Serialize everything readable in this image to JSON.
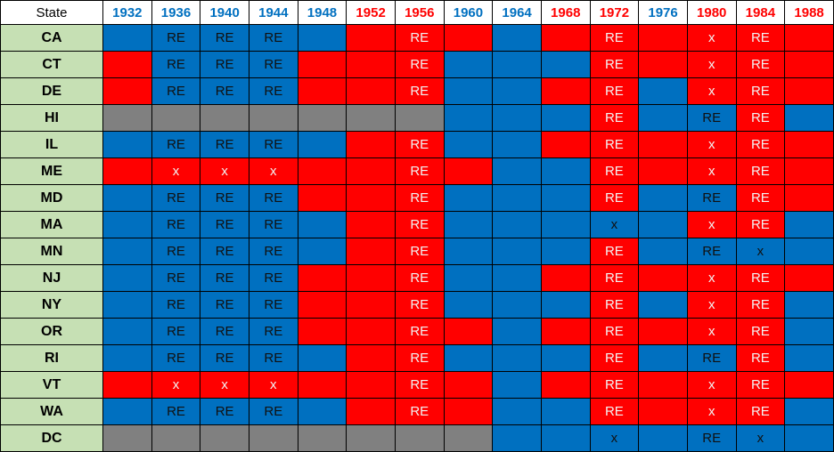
{
  "table": {
    "header": {
      "state_label": "State",
      "years": [
        {
          "label": "1932",
          "color": "#0070c0"
        },
        {
          "label": "1936",
          "color": "#0070c0"
        },
        {
          "label": "1940",
          "color": "#0070c0"
        },
        {
          "label": "1944",
          "color": "#0070c0"
        },
        {
          "label": "1948",
          "color": "#0070c0"
        },
        {
          "label": "1952",
          "color": "#ff0000"
        },
        {
          "label": "1956",
          "color": "#ff0000"
        },
        {
          "label": "1960",
          "color": "#0070c0"
        },
        {
          "label": "1964",
          "color": "#0070c0"
        },
        {
          "label": "1968",
          "color": "#ff0000"
        },
        {
          "label": "1972",
          "color": "#ff0000"
        },
        {
          "label": "1976",
          "color": "#0070c0"
        },
        {
          "label": "1980",
          "color": "#ff0000"
        },
        {
          "label": "1984",
          "color": "#ff0000"
        },
        {
          "label": "1988",
          "color": "#ff0000"
        }
      ]
    },
    "rows": [
      {
        "state": "CA",
        "cells": [
          {
            "fill": "#0070c0"
          },
          {
            "fill": "#0070c0",
            "text": "RE"
          },
          {
            "fill": "#0070c0",
            "text": "RE"
          },
          {
            "fill": "#0070c0",
            "text": "RE"
          },
          {
            "fill": "#0070c0"
          },
          {
            "fill": "#ff0000"
          },
          {
            "fill": "#ff0000",
            "text": "RE"
          },
          {
            "fill": "#ff0000"
          },
          {
            "fill": "#0070c0"
          },
          {
            "fill": "#ff0000"
          },
          {
            "fill": "#ff0000",
            "text": "RE"
          },
          {
            "fill": "#ff0000"
          },
          {
            "fill": "#ff0000",
            "text": "x"
          },
          {
            "fill": "#ff0000",
            "text": "RE"
          },
          {
            "fill": "#ff0000"
          }
        ]
      },
      {
        "state": "CT",
        "cells": [
          {
            "fill": "#ff0000"
          },
          {
            "fill": "#0070c0",
            "text": "RE"
          },
          {
            "fill": "#0070c0",
            "text": "RE"
          },
          {
            "fill": "#0070c0",
            "text": "RE"
          },
          {
            "fill": "#ff0000"
          },
          {
            "fill": "#ff0000"
          },
          {
            "fill": "#ff0000",
            "text": "RE"
          },
          {
            "fill": "#0070c0"
          },
          {
            "fill": "#0070c0"
          },
          {
            "fill": "#0070c0"
          },
          {
            "fill": "#ff0000",
            "text": "RE"
          },
          {
            "fill": "#ff0000"
          },
          {
            "fill": "#ff0000",
            "text": "x"
          },
          {
            "fill": "#ff0000",
            "text": "RE"
          },
          {
            "fill": "#ff0000"
          }
        ]
      },
      {
        "state": "DE",
        "cells": [
          {
            "fill": "#ff0000"
          },
          {
            "fill": "#0070c0",
            "text": "RE"
          },
          {
            "fill": "#0070c0",
            "text": "RE"
          },
          {
            "fill": "#0070c0",
            "text": "RE"
          },
          {
            "fill": "#ff0000"
          },
          {
            "fill": "#ff0000"
          },
          {
            "fill": "#ff0000",
            "text": "RE"
          },
          {
            "fill": "#0070c0"
          },
          {
            "fill": "#0070c0"
          },
          {
            "fill": "#ff0000"
          },
          {
            "fill": "#ff0000",
            "text": "RE"
          },
          {
            "fill": "#0070c0"
          },
          {
            "fill": "#ff0000",
            "text": "x"
          },
          {
            "fill": "#ff0000",
            "text": "RE"
          },
          {
            "fill": "#ff0000"
          }
        ]
      },
      {
        "state": "HI",
        "cells": [
          {
            "fill": "#808080"
          },
          {
            "fill": "#808080"
          },
          {
            "fill": "#808080"
          },
          {
            "fill": "#808080"
          },
          {
            "fill": "#808080"
          },
          {
            "fill": "#808080"
          },
          {
            "fill": "#808080"
          },
          {
            "fill": "#0070c0"
          },
          {
            "fill": "#0070c0"
          },
          {
            "fill": "#0070c0"
          },
          {
            "fill": "#ff0000",
            "text": "RE"
          },
          {
            "fill": "#0070c0"
          },
          {
            "fill": "#0070c0",
            "text": "RE"
          },
          {
            "fill": "#ff0000",
            "text": "RE"
          },
          {
            "fill": "#0070c0"
          }
        ]
      },
      {
        "state": "IL",
        "cells": [
          {
            "fill": "#0070c0"
          },
          {
            "fill": "#0070c0",
            "text": "RE"
          },
          {
            "fill": "#0070c0",
            "text": "RE"
          },
          {
            "fill": "#0070c0",
            "text": "RE"
          },
          {
            "fill": "#0070c0"
          },
          {
            "fill": "#ff0000"
          },
          {
            "fill": "#ff0000",
            "text": "RE"
          },
          {
            "fill": "#0070c0"
          },
          {
            "fill": "#0070c0"
          },
          {
            "fill": "#ff0000"
          },
          {
            "fill": "#ff0000",
            "text": "RE"
          },
          {
            "fill": "#ff0000"
          },
          {
            "fill": "#ff0000",
            "text": "x"
          },
          {
            "fill": "#ff0000",
            "text": "RE"
          },
          {
            "fill": "#ff0000"
          }
        ]
      },
      {
        "state": "ME",
        "cells": [
          {
            "fill": "#ff0000"
          },
          {
            "fill": "#ff0000",
            "text": "x"
          },
          {
            "fill": "#ff0000",
            "text": "x"
          },
          {
            "fill": "#ff0000",
            "text": "x"
          },
          {
            "fill": "#ff0000"
          },
          {
            "fill": "#ff0000"
          },
          {
            "fill": "#ff0000",
            "text": "RE"
          },
          {
            "fill": "#ff0000"
          },
          {
            "fill": "#0070c0"
          },
          {
            "fill": "#0070c0"
          },
          {
            "fill": "#ff0000",
            "text": "RE"
          },
          {
            "fill": "#ff0000"
          },
          {
            "fill": "#ff0000",
            "text": "x"
          },
          {
            "fill": "#ff0000",
            "text": "RE"
          },
          {
            "fill": "#ff0000"
          }
        ]
      },
      {
        "state": "MD",
        "cells": [
          {
            "fill": "#0070c0"
          },
          {
            "fill": "#0070c0",
            "text": "RE"
          },
          {
            "fill": "#0070c0",
            "text": "RE"
          },
          {
            "fill": "#0070c0",
            "text": "RE"
          },
          {
            "fill": "#ff0000"
          },
          {
            "fill": "#ff0000"
          },
          {
            "fill": "#ff0000",
            "text": "RE"
          },
          {
            "fill": "#0070c0"
          },
          {
            "fill": "#0070c0"
          },
          {
            "fill": "#0070c0"
          },
          {
            "fill": "#ff0000",
            "text": "RE"
          },
          {
            "fill": "#0070c0"
          },
          {
            "fill": "#0070c0",
            "text": "RE"
          },
          {
            "fill": "#ff0000",
            "text": "RE"
          },
          {
            "fill": "#ff0000"
          }
        ]
      },
      {
        "state": "MA",
        "cells": [
          {
            "fill": "#0070c0"
          },
          {
            "fill": "#0070c0",
            "text": "RE"
          },
          {
            "fill": "#0070c0",
            "text": "RE"
          },
          {
            "fill": "#0070c0",
            "text": "RE"
          },
          {
            "fill": "#0070c0"
          },
          {
            "fill": "#ff0000"
          },
          {
            "fill": "#ff0000",
            "text": "RE"
          },
          {
            "fill": "#0070c0"
          },
          {
            "fill": "#0070c0"
          },
          {
            "fill": "#0070c0"
          },
          {
            "fill": "#0070c0",
            "text": "x"
          },
          {
            "fill": "#0070c0"
          },
          {
            "fill": "#ff0000",
            "text": "x"
          },
          {
            "fill": "#ff0000",
            "text": "RE"
          },
          {
            "fill": "#0070c0"
          }
        ]
      },
      {
        "state": "MN",
        "cells": [
          {
            "fill": "#0070c0"
          },
          {
            "fill": "#0070c0",
            "text": "RE"
          },
          {
            "fill": "#0070c0",
            "text": "RE"
          },
          {
            "fill": "#0070c0",
            "text": "RE"
          },
          {
            "fill": "#0070c0"
          },
          {
            "fill": "#ff0000"
          },
          {
            "fill": "#ff0000",
            "text": "RE"
          },
          {
            "fill": "#0070c0"
          },
          {
            "fill": "#0070c0"
          },
          {
            "fill": "#0070c0"
          },
          {
            "fill": "#ff0000",
            "text": "RE"
          },
          {
            "fill": "#0070c0"
          },
          {
            "fill": "#0070c0",
            "text": "RE"
          },
          {
            "fill": "#0070c0",
            "text": "x"
          },
          {
            "fill": "#0070c0"
          }
        ]
      },
      {
        "state": "NJ",
        "cells": [
          {
            "fill": "#0070c0"
          },
          {
            "fill": "#0070c0",
            "text": "RE"
          },
          {
            "fill": "#0070c0",
            "text": "RE"
          },
          {
            "fill": "#0070c0",
            "text": "RE"
          },
          {
            "fill": "#ff0000"
          },
          {
            "fill": "#ff0000"
          },
          {
            "fill": "#ff0000",
            "text": "RE"
          },
          {
            "fill": "#0070c0"
          },
          {
            "fill": "#0070c0"
          },
          {
            "fill": "#ff0000"
          },
          {
            "fill": "#ff0000",
            "text": "RE"
          },
          {
            "fill": "#ff0000"
          },
          {
            "fill": "#ff0000",
            "text": "x"
          },
          {
            "fill": "#ff0000",
            "text": "RE"
          },
          {
            "fill": "#ff0000"
          }
        ]
      },
      {
        "state": "NY",
        "cells": [
          {
            "fill": "#0070c0"
          },
          {
            "fill": "#0070c0",
            "text": "RE"
          },
          {
            "fill": "#0070c0",
            "text": "RE"
          },
          {
            "fill": "#0070c0",
            "text": "RE"
          },
          {
            "fill": "#ff0000"
          },
          {
            "fill": "#ff0000"
          },
          {
            "fill": "#ff0000",
            "text": "RE"
          },
          {
            "fill": "#0070c0"
          },
          {
            "fill": "#0070c0"
          },
          {
            "fill": "#0070c0"
          },
          {
            "fill": "#ff0000",
            "text": "RE"
          },
          {
            "fill": "#0070c0"
          },
          {
            "fill": "#ff0000",
            "text": "x"
          },
          {
            "fill": "#ff0000",
            "text": "RE"
          },
          {
            "fill": "#0070c0"
          }
        ]
      },
      {
        "state": "OR",
        "cells": [
          {
            "fill": "#0070c0"
          },
          {
            "fill": "#0070c0",
            "text": "RE"
          },
          {
            "fill": "#0070c0",
            "text": "RE"
          },
          {
            "fill": "#0070c0",
            "text": "RE"
          },
          {
            "fill": "#ff0000"
          },
          {
            "fill": "#ff0000"
          },
          {
            "fill": "#ff0000",
            "text": "RE"
          },
          {
            "fill": "#ff0000"
          },
          {
            "fill": "#0070c0"
          },
          {
            "fill": "#ff0000"
          },
          {
            "fill": "#ff0000",
            "text": "RE"
          },
          {
            "fill": "#ff0000"
          },
          {
            "fill": "#ff0000",
            "text": "x"
          },
          {
            "fill": "#ff0000",
            "text": "RE"
          },
          {
            "fill": "#0070c0"
          }
        ]
      },
      {
        "state": "RI",
        "cells": [
          {
            "fill": "#0070c0"
          },
          {
            "fill": "#0070c0",
            "text": "RE"
          },
          {
            "fill": "#0070c0",
            "text": "RE"
          },
          {
            "fill": "#0070c0",
            "text": "RE"
          },
          {
            "fill": "#0070c0"
          },
          {
            "fill": "#ff0000"
          },
          {
            "fill": "#ff0000",
            "text": "RE"
          },
          {
            "fill": "#0070c0"
          },
          {
            "fill": "#0070c0"
          },
          {
            "fill": "#0070c0"
          },
          {
            "fill": "#ff0000",
            "text": "RE"
          },
          {
            "fill": "#0070c0"
          },
          {
            "fill": "#0070c0",
            "text": "RE"
          },
          {
            "fill": "#ff0000",
            "text": "RE"
          },
          {
            "fill": "#0070c0"
          }
        ]
      },
      {
        "state": "VT",
        "cells": [
          {
            "fill": "#ff0000"
          },
          {
            "fill": "#ff0000",
            "text": "x"
          },
          {
            "fill": "#ff0000",
            "text": "x"
          },
          {
            "fill": "#ff0000",
            "text": "x"
          },
          {
            "fill": "#ff0000"
          },
          {
            "fill": "#ff0000"
          },
          {
            "fill": "#ff0000",
            "text": "RE"
          },
          {
            "fill": "#ff0000"
          },
          {
            "fill": "#0070c0"
          },
          {
            "fill": "#ff0000"
          },
          {
            "fill": "#ff0000",
            "text": "RE"
          },
          {
            "fill": "#ff0000"
          },
          {
            "fill": "#ff0000",
            "text": "x"
          },
          {
            "fill": "#ff0000",
            "text": "RE"
          },
          {
            "fill": "#ff0000"
          }
        ]
      },
      {
        "state": "WA",
        "cells": [
          {
            "fill": "#0070c0"
          },
          {
            "fill": "#0070c0",
            "text": "RE"
          },
          {
            "fill": "#0070c0",
            "text": "RE"
          },
          {
            "fill": "#0070c0",
            "text": "RE"
          },
          {
            "fill": "#0070c0"
          },
          {
            "fill": "#ff0000"
          },
          {
            "fill": "#ff0000",
            "text": "RE"
          },
          {
            "fill": "#ff0000"
          },
          {
            "fill": "#0070c0"
          },
          {
            "fill": "#0070c0"
          },
          {
            "fill": "#ff0000",
            "text": "RE"
          },
          {
            "fill": "#ff0000"
          },
          {
            "fill": "#ff0000",
            "text": "x"
          },
          {
            "fill": "#ff0000",
            "text": "RE"
          },
          {
            "fill": "#0070c0"
          }
        ]
      },
      {
        "state": "DC",
        "cells": [
          {
            "fill": "#808080"
          },
          {
            "fill": "#808080"
          },
          {
            "fill": "#808080"
          },
          {
            "fill": "#808080"
          },
          {
            "fill": "#808080"
          },
          {
            "fill": "#808080"
          },
          {
            "fill": "#808080"
          },
          {
            "fill": "#808080"
          },
          {
            "fill": "#0070c0"
          },
          {
            "fill": "#0070c0"
          },
          {
            "fill": "#0070c0",
            "text": "x"
          },
          {
            "fill": "#0070c0"
          },
          {
            "fill": "#0070c0",
            "text": "RE"
          },
          {
            "fill": "#0070c0",
            "text": "x"
          },
          {
            "fill": "#0070c0"
          }
        ]
      }
    ]
  }
}
